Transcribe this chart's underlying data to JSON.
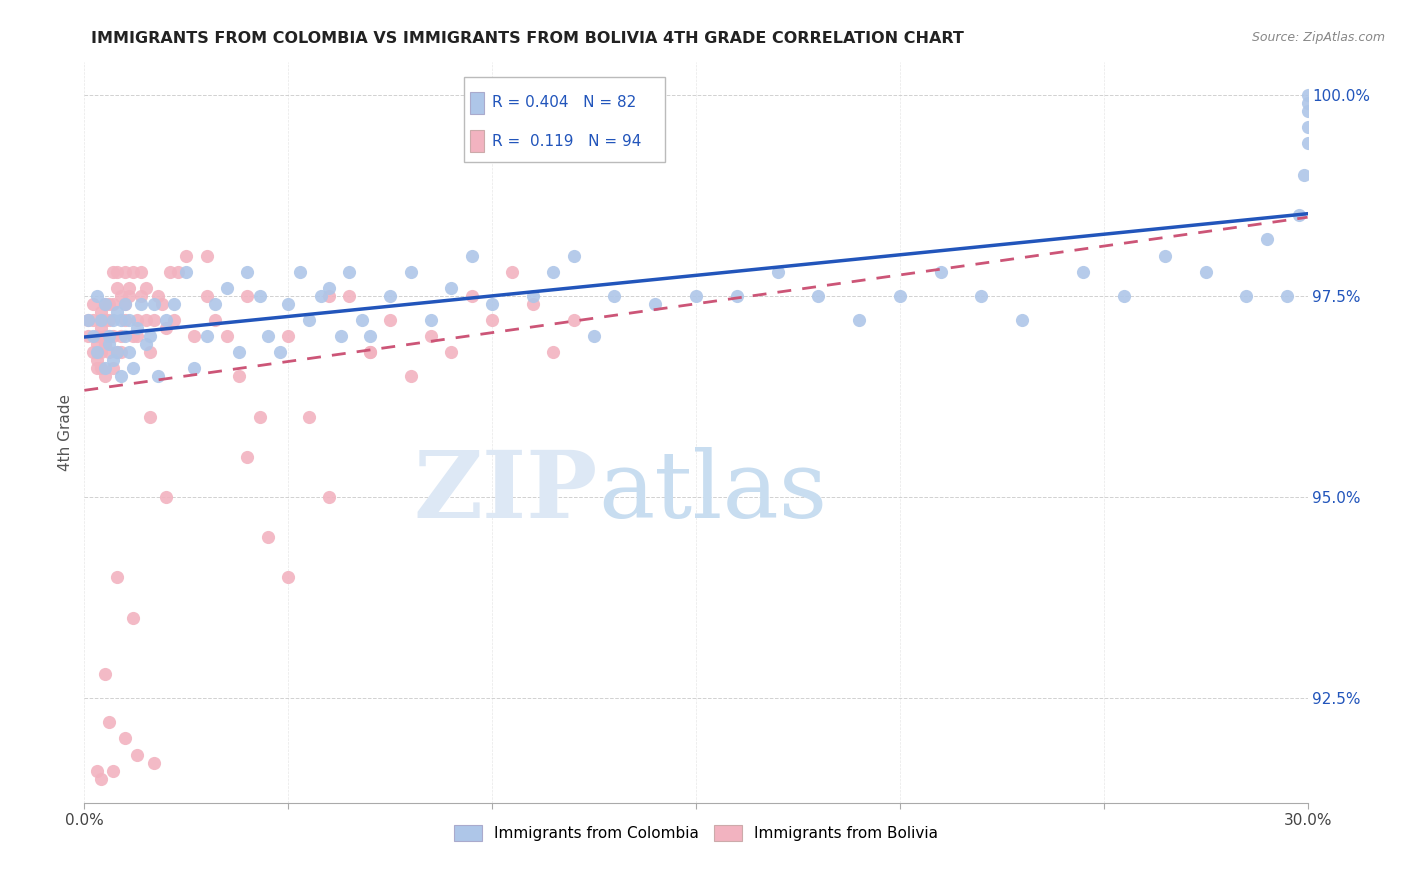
{
  "title": "IMMIGRANTS FROM COLOMBIA VS IMMIGRANTS FROM BOLIVIA 4TH GRADE CORRELATION CHART",
  "source": "Source: ZipAtlas.com",
  "ylabel": "4th Grade",
  "xlim": [
    0.0,
    0.3
  ],
  "ylim": [
    0.912,
    1.004
  ],
  "xticks": [
    0.0,
    0.05,
    0.1,
    0.15,
    0.2,
    0.25,
    0.3
  ],
  "xticklabels": [
    "0.0%",
    "",
    "",
    "",
    "",
    "",
    "30.0%"
  ],
  "yticks": [
    0.925,
    0.95,
    0.975,
    1.0
  ],
  "yticklabels": [
    "92.5%",
    "95.0%",
    "97.5%",
    "100.0%"
  ],
  "colombia_color": "#aec6e8",
  "bolivia_color": "#f2b3c0",
  "colombia_R": 0.404,
  "colombia_N": 82,
  "bolivia_R": 0.119,
  "bolivia_N": 94,
  "line_colombia_color": "#2255bb",
  "line_bolivia_color": "#cc5577",
  "watermark_zip": "ZIP",
  "watermark_atlas": "atlas",
  "legend_label_colombia": "Immigrants from Colombia",
  "legend_label_bolivia": "Immigrants from Bolivia",
  "colombia_x": [
    0.001,
    0.002,
    0.003,
    0.003,
    0.004,
    0.005,
    0.005,
    0.006,
    0.006,
    0.007,
    0.007,
    0.008,
    0.008,
    0.009,
    0.009,
    0.01,
    0.01,
    0.011,
    0.011,
    0.012,
    0.013,
    0.014,
    0.015,
    0.016,
    0.017,
    0.018,
    0.02,
    0.022,
    0.025,
    0.027,
    0.03,
    0.032,
    0.035,
    0.038,
    0.04,
    0.043,
    0.045,
    0.048,
    0.05,
    0.053,
    0.055,
    0.058,
    0.06,
    0.063,
    0.065,
    0.068,
    0.07,
    0.075,
    0.08,
    0.085,
    0.09,
    0.095,
    0.1,
    0.11,
    0.115,
    0.12,
    0.125,
    0.13,
    0.14,
    0.15,
    0.16,
    0.17,
    0.18,
    0.19,
    0.2,
    0.21,
    0.22,
    0.23,
    0.245,
    0.255,
    0.265,
    0.275,
    0.285,
    0.29,
    0.295,
    0.298,
    0.299,
    0.3,
    0.3,
    0.3,
    0.3,
    0.3
  ],
  "colombia_y": [
    0.972,
    0.97,
    0.968,
    0.975,
    0.972,
    0.966,
    0.974,
    0.97,
    0.969,
    0.967,
    0.972,
    0.973,
    0.968,
    0.965,
    0.972,
    0.97,
    0.974,
    0.968,
    0.972,
    0.966,
    0.971,
    0.974,
    0.969,
    0.97,
    0.974,
    0.965,
    0.972,
    0.974,
    0.978,
    0.966,
    0.97,
    0.974,
    0.976,
    0.968,
    0.978,
    0.975,
    0.97,
    0.968,
    0.974,
    0.978,
    0.972,
    0.975,
    0.976,
    0.97,
    0.978,
    0.972,
    0.97,
    0.975,
    0.978,
    0.972,
    0.976,
    0.98,
    0.974,
    0.975,
    0.978,
    0.98,
    0.97,
    0.975,
    0.974,
    0.975,
    0.975,
    0.978,
    0.975,
    0.972,
    0.975,
    0.978,
    0.975,
    0.972,
    0.978,
    0.975,
    0.98,
    0.978,
    0.975,
    0.982,
    0.975,
    0.985,
    0.99,
    0.994,
    0.996,
    0.998,
    0.999,
    1.0
  ],
  "bolivia_x": [
    0.001,
    0.001,
    0.002,
    0.002,
    0.002,
    0.003,
    0.003,
    0.003,
    0.003,
    0.004,
    0.004,
    0.004,
    0.004,
    0.005,
    0.005,
    0.005,
    0.005,
    0.005,
    0.006,
    0.006,
    0.006,
    0.006,
    0.007,
    0.007,
    0.007,
    0.007,
    0.008,
    0.008,
    0.008,
    0.009,
    0.009,
    0.009,
    0.01,
    0.01,
    0.01,
    0.011,
    0.011,
    0.012,
    0.012,
    0.013,
    0.013,
    0.014,
    0.014,
    0.015,
    0.015,
    0.016,
    0.017,
    0.018,
    0.019,
    0.02,
    0.021,
    0.022,
    0.023,
    0.025,
    0.027,
    0.03,
    0.032,
    0.035,
    0.038,
    0.04,
    0.043,
    0.045,
    0.05,
    0.055,
    0.06,
    0.065,
    0.07,
    0.075,
    0.08,
    0.085,
    0.09,
    0.095,
    0.1,
    0.105,
    0.11,
    0.115,
    0.12,
    0.03,
    0.04,
    0.05,
    0.06,
    0.07,
    0.008,
    0.012,
    0.016,
    0.02,
    0.005,
    0.006,
    0.01,
    0.013,
    0.017,
    0.003,
    0.004,
    0.007
  ],
  "bolivia_y": [
    0.972,
    0.97,
    0.968,
    0.972,
    0.974,
    0.966,
    0.97,
    0.969,
    0.967,
    0.973,
    0.968,
    0.966,
    0.971,
    0.974,
    0.969,
    0.97,
    0.965,
    0.972,
    0.974,
    0.968,
    0.97,
    0.972,
    0.978,
    0.966,
    0.97,
    0.974,
    0.976,
    0.968,
    0.978,
    0.975,
    0.97,
    0.968,
    0.974,
    0.978,
    0.972,
    0.975,
    0.976,
    0.97,
    0.978,
    0.972,
    0.97,
    0.975,
    0.978,
    0.972,
    0.976,
    0.968,
    0.972,
    0.975,
    0.974,
    0.971,
    0.978,
    0.972,
    0.978,
    0.98,
    0.97,
    0.975,
    0.972,
    0.97,
    0.965,
    0.955,
    0.96,
    0.945,
    0.94,
    0.96,
    0.95,
    0.975,
    0.968,
    0.972,
    0.965,
    0.97,
    0.968,
    0.975,
    0.972,
    0.978,
    0.974,
    0.968,
    0.972,
    0.98,
    0.975,
    0.97,
    0.975,
    0.968,
    0.94,
    0.935,
    0.96,
    0.95,
    0.928,
    0.922,
    0.92,
    0.918,
    0.917,
    0.916,
    0.915,
    0.916
  ]
}
